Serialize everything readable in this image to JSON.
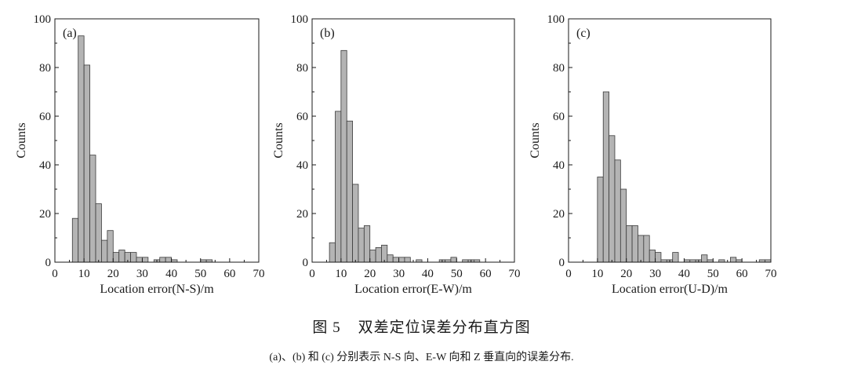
{
  "figure": {
    "label": "图 5",
    "title": "双差定位误差分布直方图",
    "note": "(a)、(b) 和 (c) 分别表示 N-S 向、E-W 向和 Z 垂直向的误差分布."
  },
  "chart_data": [
    {
      "type": "bar",
      "panel_label": "(a)",
      "xlabel": "Location error(N-S)/m",
      "ylabel": "Counts",
      "xlim": [
        0,
        70
      ],
      "ylim": [
        0,
        100
      ],
      "xticks": [
        0,
        10,
        20,
        30,
        40,
        50,
        60,
        70
      ],
      "yticks": [
        0,
        20,
        40,
        60,
        80,
        100
      ],
      "bin_width": 2,
      "bins": [
        {
          "x": 6,
          "count": 18
        },
        {
          "x": 8,
          "count": 93
        },
        {
          "x": 10,
          "count": 81
        },
        {
          "x": 12,
          "count": 44
        },
        {
          "x": 14,
          "count": 24
        },
        {
          "x": 16,
          "count": 9
        },
        {
          "x": 18,
          "count": 13
        },
        {
          "x": 20,
          "count": 4
        },
        {
          "x": 22,
          "count": 5
        },
        {
          "x": 24,
          "count": 4
        },
        {
          "x": 26,
          "count": 4
        },
        {
          "x": 28,
          "count": 2
        },
        {
          "x": 30,
          "count": 2
        },
        {
          "x": 32,
          "count": 0
        },
        {
          "x": 34,
          "count": 1
        },
        {
          "x": 36,
          "count": 2
        },
        {
          "x": 38,
          "count": 2
        },
        {
          "x": 40,
          "count": 1
        },
        {
          "x": 50,
          "count": 1
        },
        {
          "x": 52,
          "count": 1
        }
      ]
    },
    {
      "type": "bar",
      "panel_label": "(b)",
      "xlabel": "Location error(E-W)/m",
      "ylabel": "Counts",
      "xlim": [
        0,
        70
      ],
      "ylim": [
        0,
        100
      ],
      "xticks": [
        0,
        10,
        20,
        30,
        40,
        50,
        60,
        70
      ],
      "yticks": [
        0,
        20,
        40,
        60,
        80,
        100
      ],
      "bin_width": 2,
      "bins": [
        {
          "x": 6,
          "count": 8
        },
        {
          "x": 8,
          "count": 62
        },
        {
          "x": 10,
          "count": 87
        },
        {
          "x": 12,
          "count": 58
        },
        {
          "x": 14,
          "count": 32
        },
        {
          "x": 16,
          "count": 14
        },
        {
          "x": 18,
          "count": 15
        },
        {
          "x": 20,
          "count": 5
        },
        {
          "x": 22,
          "count": 6
        },
        {
          "x": 24,
          "count": 7
        },
        {
          "x": 26,
          "count": 3
        },
        {
          "x": 28,
          "count": 2
        },
        {
          "x": 30,
          "count": 2
        },
        {
          "x": 32,
          "count": 2
        },
        {
          "x": 34,
          "count": 0
        },
        {
          "x": 36,
          "count": 1
        },
        {
          "x": 38,
          "count": 0
        },
        {
          "x": 44,
          "count": 1
        },
        {
          "x": 46,
          "count": 1
        },
        {
          "x": 48,
          "count": 2
        },
        {
          "x": 52,
          "count": 1
        },
        {
          "x": 54,
          "count": 1
        },
        {
          "x": 56,
          "count": 1
        }
      ]
    },
    {
      "type": "bar",
      "panel_label": "(c)",
      "xlabel": "Location error(U-D)/m",
      "ylabel": "Counts",
      "xlim": [
        0,
        70
      ],
      "ylim": [
        0,
        100
      ],
      "xticks": [
        0,
        10,
        20,
        30,
        40,
        50,
        60,
        70
      ],
      "yticks": [
        0,
        20,
        40,
        60,
        80,
        100
      ],
      "bin_width": 2,
      "bins": [
        {
          "x": 10,
          "count": 35
        },
        {
          "x": 12,
          "count": 70
        },
        {
          "x": 14,
          "count": 52
        },
        {
          "x": 16,
          "count": 42
        },
        {
          "x": 18,
          "count": 30
        },
        {
          "x": 20,
          "count": 15
        },
        {
          "x": 22,
          "count": 15
        },
        {
          "x": 24,
          "count": 11
        },
        {
          "x": 26,
          "count": 11
        },
        {
          "x": 28,
          "count": 5
        },
        {
          "x": 30,
          "count": 4
        },
        {
          "x": 32,
          "count": 1
        },
        {
          "x": 34,
          "count": 1
        },
        {
          "x": 36,
          "count": 4
        },
        {
          "x": 38,
          "count": 0
        },
        {
          "x": 40,
          "count": 1
        },
        {
          "x": 42,
          "count": 1
        },
        {
          "x": 44,
          "count": 1
        },
        {
          "x": 46,
          "count": 3
        },
        {
          "x": 48,
          "count": 1
        },
        {
          "x": 52,
          "count": 1
        },
        {
          "x": 56,
          "count": 2
        },
        {
          "x": 58,
          "count": 1
        },
        {
          "x": 66,
          "count": 1
        },
        {
          "x": 68,
          "count": 1
        }
      ]
    }
  ]
}
